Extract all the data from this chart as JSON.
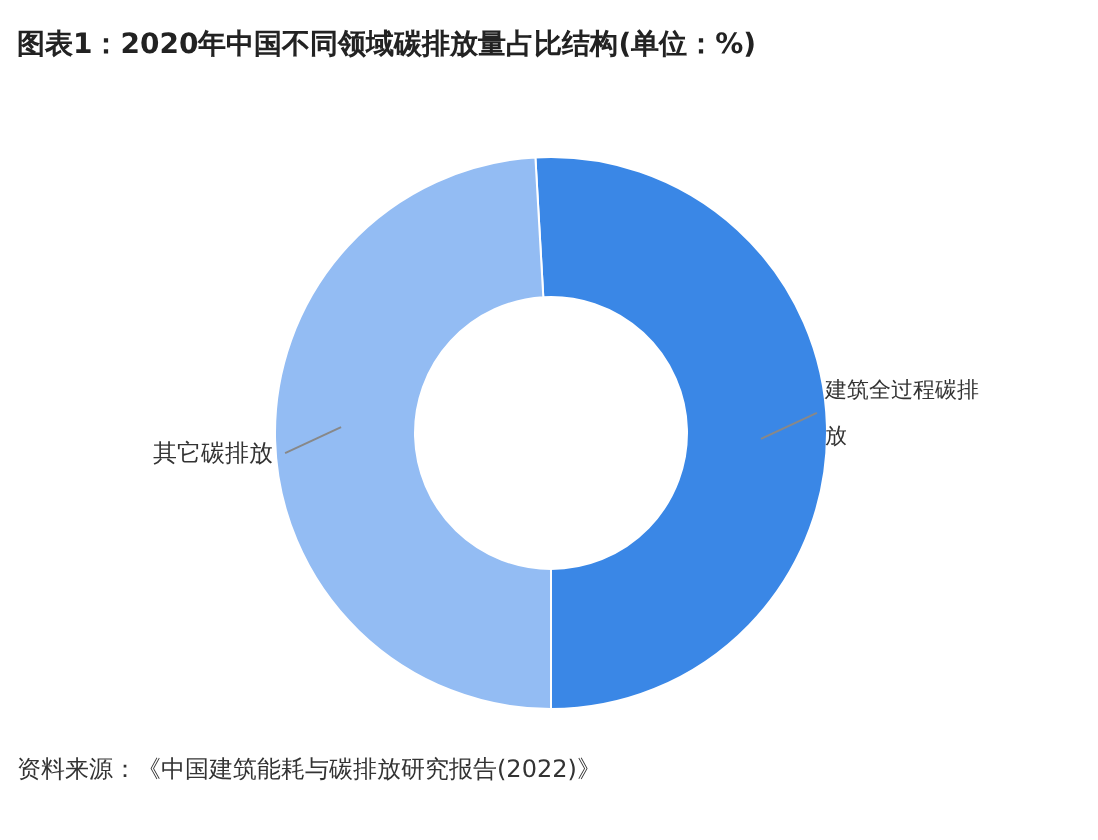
{
  "chart_data": {
    "type": "donut",
    "title": "图表1：2020年中国不同领域碳排放量占比结构(单位：%)",
    "categories": [
      "建筑全过程碳排放",
      "其它碳排放"
    ],
    "values": [
      50.9,
      49.1
    ],
    "colors": [
      "#3a87e6",
      "#93bcf3"
    ],
    "annotations": [
      "资料来源：《中国建筑能耗与碳排放研究报告(2022)》"
    ]
  }
}
